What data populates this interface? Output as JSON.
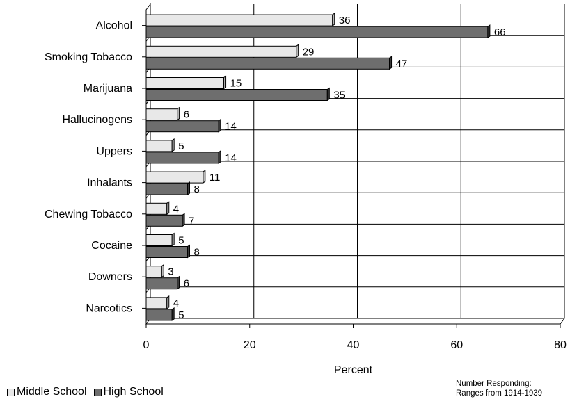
{
  "chart_data": {
    "type": "bar",
    "orientation": "horizontal",
    "categories": [
      "Alcohol",
      "Smoking Tobacco",
      "Marijuana",
      "Hallucinogens",
      "Uppers",
      "Inhalants",
      "Chewing Tobacco",
      "Cocaine",
      "Downers",
      "Narcotics"
    ],
    "series": [
      {
        "name": "Middle School",
        "values": [
          36,
          29,
          15,
          6,
          5,
          11,
          4,
          5,
          3,
          4
        ]
      },
      {
        "name": "High School",
        "values": [
          66,
          47,
          35,
          14,
          14,
          8,
          7,
          8,
          6,
          5
        ]
      }
    ],
    "xlabel": "Percent",
    "xlim": [
      0,
      80
    ],
    "xticks": [
      0,
      20,
      40,
      60,
      80
    ],
    "grid": true,
    "legend_placement": "bottom-left",
    "colors": {
      "Middle School": "#e8e8e8",
      "High School": "#6e6e6e"
    }
  },
  "legend": {
    "middle_label": "Middle School",
    "high_label": "High School"
  },
  "note": {
    "line1": "Number Responding:",
    "line2": "Ranges from 1914-1939"
  }
}
